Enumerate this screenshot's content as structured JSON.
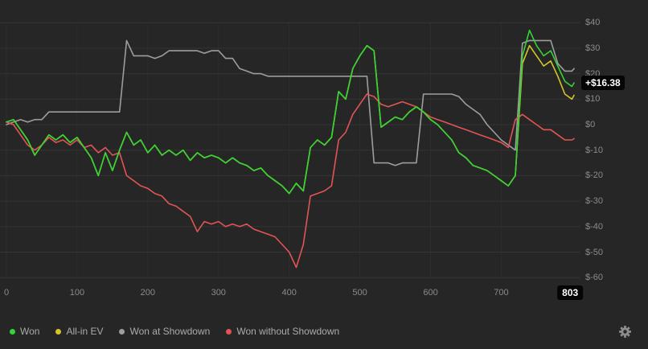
{
  "colors": {
    "background": "#262626",
    "grid_horizontal": "#343434",
    "grid_vertical": "#2d2d2d",
    "axis_text": "#8b8b8b",
    "legend_text": "#ababab",
    "badge_background": "#050505",
    "badge_text": "#ffffff",
    "won": "#35d435",
    "all_in_ev": "#d4c528",
    "won_at_showdown": "#9d9d9d",
    "won_without_showdown": "#e25454"
  },
  "chart_data": {
    "type": "line",
    "title": "",
    "xlabel": "",
    "ylabel": "",
    "grid": true,
    "legend_position": "bottom-left",
    "xlim": [
      0,
      803
    ],
    "ylim": [
      -63,
      45
    ],
    "x_ticks": [
      0,
      100,
      200,
      300,
      400,
      500,
      600,
      700
    ],
    "x_end_label": "803",
    "y_ticks": [
      "$40",
      "$30",
      "$20",
      "$10",
      "$0",
      "$-10",
      "$-20",
      "$-30",
      "$-40",
      "$-50",
      "$-60"
    ],
    "y_tick_values": [
      40,
      30,
      20,
      10,
      0,
      -10,
      -20,
      -30,
      -40,
      -50,
      -60
    ],
    "current_value": 16.38,
    "current_value_label": "+$16.38",
    "x": [
      0,
      10,
      20,
      30,
      40,
      50,
      60,
      70,
      80,
      90,
      100,
      110,
      120,
      130,
      140,
      150,
      160,
      170,
      180,
      190,
      200,
      210,
      220,
      230,
      240,
      250,
      260,
      270,
      280,
      290,
      300,
      310,
      320,
      330,
      340,
      350,
      360,
      370,
      380,
      390,
      400,
      410,
      420,
      430,
      440,
      450,
      460,
      470,
      480,
      490,
      500,
      510,
      520,
      530,
      540,
      550,
      560,
      570,
      580,
      590,
      600,
      610,
      620,
      630,
      640,
      650,
      660,
      670,
      680,
      690,
      700,
      710,
      720,
      730,
      740,
      750,
      760,
      770,
      780,
      790,
      800,
      803
    ],
    "series": [
      {
        "name": "Won",
        "color": "#35d435",
        "values": [
          1,
          2,
          -2,
          -6,
          -12,
          -8,
          -4,
          -6,
          -4,
          -7,
          -5,
          -9,
          -13,
          -20,
          -11,
          -18,
          -10,
          -3,
          -8,
          -6,
          -11,
          -8,
          -12,
          -10,
          -12,
          -10,
          -14,
          -11,
          -13,
          -12,
          -13,
          -15,
          -13,
          -15,
          -16,
          -18,
          -17,
          -20,
          -22,
          -24,
          -27,
          -23,
          -26,
          -9,
          -6,
          -8,
          -5,
          13,
          10,
          22,
          27,
          31,
          29,
          -1,
          1,
          3,
          2,
          5,
          7,
          5,
          2,
          0,
          -3,
          -6,
          -11,
          -13,
          -16,
          -17,
          -18,
          -20,
          -22,
          -24,
          -20,
          27,
          37,
          31,
          27,
          29,
          23,
          17,
          15,
          16.38
        ]
      },
      {
        "name": "All-in EV",
        "color": "#d4c528",
        "values": [
          1,
          2,
          -2,
          -6,
          -12,
          -8,
          -4,
          -6,
          -4,
          -7,
          -5,
          -9,
          -13,
          -20,
          -11,
          -18,
          -10,
          -3,
          -8,
          -6,
          -11,
          -8,
          -12,
          -10,
          -12,
          -10,
          -14,
          -11,
          -13,
          -12,
          -13,
          -15,
          -13,
          -15,
          -16,
          -18,
          -17,
          -20,
          -22,
          -24,
          -27,
          -23,
          -26,
          -9,
          -6,
          -8,
          -5,
          13,
          10,
          22,
          27,
          31,
          29,
          -1,
          1,
          3,
          2,
          5,
          7,
          5,
          2,
          0,
          -3,
          -6,
          -11,
          -13,
          -16,
          -17,
          -18,
          -20,
          -22,
          -24,
          -20,
          24,
          31,
          27,
          23,
          25,
          19,
          12,
          10,
          11.5
        ]
      },
      {
        "name": "Won at Showdown",
        "color": "#9d9d9d",
        "values": [
          0,
          1,
          2,
          1,
          2,
          2,
          5,
          5,
          5,
          5,
          5,
          5,
          5,
          5,
          5,
          5,
          5,
          33,
          27,
          27,
          27,
          26,
          27,
          29,
          29,
          29,
          29,
          29,
          28,
          29,
          29,
          26,
          26,
          22,
          21,
          20,
          20,
          19,
          19,
          19,
          19,
          19,
          19,
          19,
          19,
          19,
          19,
          19,
          19,
          19,
          19,
          19,
          -15,
          -15,
          -15,
          -16,
          -15,
          -15,
          -15,
          12,
          12,
          12,
          12,
          12,
          11,
          8,
          6,
          4,
          0,
          -3,
          -6,
          -8,
          -10,
          32,
          33,
          33,
          33,
          33,
          24,
          21,
          21,
          22
        ]
      },
      {
        "name": "Won without Showdown",
        "color": "#e25454",
        "values": [
          1,
          0,
          -4,
          -8,
          -10,
          -8,
          -5,
          -7,
          -6,
          -8,
          -6,
          -9,
          -8,
          -11,
          -9,
          -12,
          -11,
          -20,
          -22,
          -24,
          -25,
          -27,
          -28,
          -31,
          -32,
          -34,
          -36,
          -42,
          -38,
          -39,
          -38,
          -40,
          -39,
          -40,
          -39,
          -41,
          -42,
          -43,
          -44,
          -47,
          -50,
          -56,
          -47,
          -28,
          -27,
          -26,
          -24,
          -6,
          -3,
          4,
          8,
          12,
          11,
          8,
          7,
          8,
          9,
          8,
          7,
          5,
          3,
          2,
          1,
          0,
          -1,
          -2,
          -3,
          -4,
          -5,
          -6,
          -7,
          -9,
          2,
          4,
          2,
          0,
          -2,
          -2,
          -4,
          -6,
          -6,
          -5.5
        ]
      }
    ]
  },
  "icons": {
    "gear": "settings-gear"
  }
}
